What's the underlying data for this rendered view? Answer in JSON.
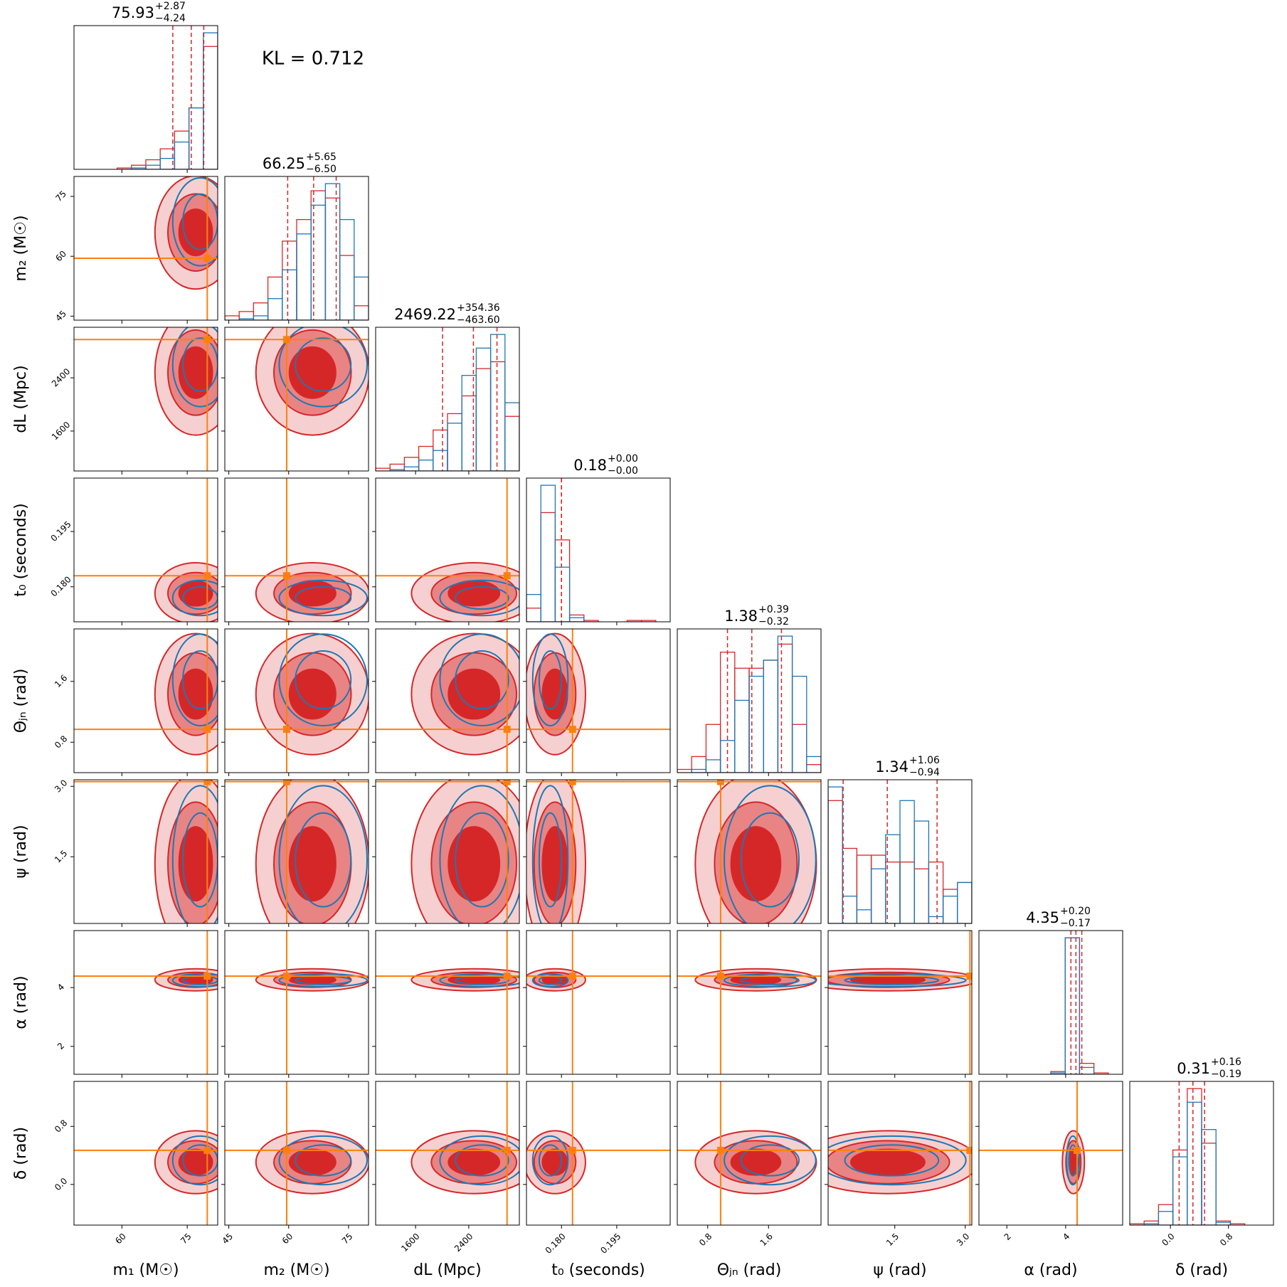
{
  "chart_data": {
    "type": "corner",
    "annotation": "KL = 0.712",
    "truth_color": "#ff7f0e",
    "parameters": [
      {
        "label": "m₁ (M☉)",
        "lim": [
          49,
          82
        ],
        "ticks": [
          60,
          75
        ],
        "truth": 79.6,
        "median": 75.93,
        "plus": {
          "value": 2.87,
          "label": "+2.87"
        },
        "minus": {
          "value": 4.24,
          "label": "−4.24"
        },
        "bins": [
          49,
          52.3,
          55.6,
          58.9,
          62.2,
          65.5,
          68.8,
          72.1,
          75.4,
          78.7,
          82
        ],
        "series": [
          {
            "color": "#d62728",
            "values": [
              0,
              0,
              0,
              1,
              3,
              7,
              15,
              28,
              45,
              90
            ]
          },
          {
            "color": "#1f77b4",
            "values": [
              0,
              0,
              0,
              0,
              1,
              3,
              8,
              20,
              45,
              100
            ]
          }
        ]
      },
      {
        "label": "m₂ (M☉)",
        "lim": [
          44,
          80
        ],
        "ticks": [
          45,
          60,
          75
        ],
        "truth": 59.5,
        "median": 66.25,
        "plus": {
          "value": 5.65,
          "label": "+5.65"
        },
        "minus": {
          "value": 6.5,
          "label": "−6.50"
        },
        "bins": [
          44,
          47.6,
          51.2,
          54.8,
          58.4,
          62,
          65.6,
          69.2,
          72.8,
          76.4,
          80
        ],
        "series": [
          {
            "color": "#d62728",
            "values": [
              3,
              6,
              12,
              30,
              55,
              70,
              90,
              85,
              45,
              10
            ]
          },
          {
            "color": "#1f77b4",
            "values": [
              0,
              1,
              3,
              15,
              35,
              60,
              80,
              95,
              70,
              30
            ]
          }
        ]
      },
      {
        "label": "dL (Mpc)",
        "lim": [
          1000,
          3160
        ],
        "ticks": [
          1600,
          2400
        ],
        "truth": 2975,
        "median": 2469.22,
        "plus": {
          "value": 354.36,
          "label": "+354.36"
        },
        "minus": {
          "value": 463.6,
          "label": "−463.60"
        },
        "bins": [
          1000,
          1216,
          1432,
          1648,
          1864,
          2080,
          2296,
          2512,
          2728,
          2944,
          3160
        ],
        "series": [
          {
            "color": "#d62728",
            "values": [
              2,
              5,
              10,
              18,
              30,
              42,
              55,
              75,
              80,
              40
            ]
          },
          {
            "color": "#1f77b4",
            "values": [
              0,
              1,
              3,
              8,
              15,
              35,
              70,
              90,
              100,
              50
            ]
          }
        ]
      },
      {
        "label": "t₀ (seconds)",
        "lim": [
          0.1705,
          0.2095
        ],
        "ticks": [
          {
            "value": 0.18,
            "label": "0.180"
          },
          {
            "value": 0.195,
            "label": "0.195"
          }
        ],
        "truth": 0.183,
        "median": 0.18,
        "plus": {
          "value": 0,
          "label": "+0.00"
        },
        "minus": {
          "value": 0,
          "label": "−0.00"
        },
        "bins": [
          0.1705,
          0.1744,
          0.1783,
          0.1822,
          0.1861,
          0.19,
          0.1939,
          0.1978,
          0.2017,
          0.2056,
          0.2095
        ],
        "series": [
          {
            "color": "#d62728",
            "values": [
              10,
              80,
              60,
              5,
              1,
              0,
              0,
              1,
              1,
              0
            ]
          },
          {
            "color": "#1f77b4",
            "values": [
              20,
              100,
              40,
              3,
              0,
              0,
              0,
              0,
              0,
              0
            ]
          }
        ]
      },
      {
        "label": "Θⱼₙ (rad)",
        "lim": [
          0.4,
          2.29
        ],
        "ticks": [
          0.8,
          1.6
        ],
        "truth": 0.97,
        "median": 1.38,
        "plus": {
          "value": 0.39,
          "label": "+0.39"
        },
        "minus": {
          "value": 0.32,
          "label": "−0.32"
        },
        "bins": [
          0.4,
          0.589,
          0.778,
          0.967,
          1.156,
          1.345,
          1.534,
          1.723,
          1.912,
          2.101,
          2.29
        ],
        "series": [
          {
            "color": "#d62728",
            "values": [
              2,
              10,
              30,
              75,
              65,
              65,
              70,
              80,
              30,
              5
            ]
          },
          {
            "color": "#1f77b4",
            "values": [
              0,
              2,
              8,
              20,
              45,
              60,
              70,
              85,
              60,
              10
            ]
          }
        ]
      },
      {
        "label": "ψ (rad)",
        "lim": [
          0.08,
          3.14
        ],
        "ticks": [
          1.5,
          {
            "value": 3,
            "label": "3.0"
          }
        ],
        "truth": 3.1,
        "median": 1.34,
        "plus": {
          "value": 1.06,
          "label": "+1.06"
        },
        "minus": {
          "value": 0.94,
          "label": "−0.94"
        },
        "bins": [
          0.08,
          0.386,
          0.692,
          0.998,
          1.304,
          1.61,
          1.916,
          2.222,
          2.528,
          2.834,
          3.14
        ],
        "series": [
          {
            "color": "#d62728",
            "values": [
              90,
              55,
              50,
              50,
              45,
              45,
              40,
              45,
              25,
              30
            ]
          },
          {
            "color": "#1f77b4",
            "values": [
              100,
              20,
              10,
              40,
              65,
              90,
              75,
              5,
              20,
              30
            ]
          }
        ]
      },
      {
        "label": "α (rad)",
        "lim": [
          1.05,
          5.94
        ],
        "ticks": [
          2,
          4
        ],
        "truth": 4.39,
        "median": 4.35,
        "plus": {
          "value": 0.2,
          "label": "+0.20"
        },
        "minus": {
          "value": 0.17,
          "label": "−0.17"
        },
        "bins": [
          1.05,
          1.539,
          2.028,
          2.517,
          3.006,
          3.495,
          3.984,
          4.473,
          4.962,
          5.451,
          5.94
        ],
        "series": [
          {
            "color": "#d62728",
            "values": [
              0,
              0,
              0,
              0,
              0,
              2,
              100,
              8,
              1,
              0
            ]
          },
          {
            "color": "#1f77b4",
            "values": [
              0,
              0,
              0,
              0,
              0,
              1,
              100,
              5,
              0,
              0
            ]
          }
        ]
      },
      {
        "label": "δ (rad)",
        "lim": [
          -0.56,
          1.42
        ],
        "ticks": [
          {
            "value": 0,
            "label": "0.0"
          },
          0.8
        ],
        "truth": 0.47,
        "median": 0.31,
        "plus": {
          "value": 0.16,
          "label": "+0.16"
        },
        "minus": {
          "value": 0.19,
          "label": "−0.19"
        },
        "bins": [
          -0.56,
          -0.362,
          -0.164,
          0.034,
          0.232,
          0.43,
          0.628,
          0.826,
          1.024,
          1.222,
          1.42
        ],
        "series": [
          {
            "color": "#d62728",
            "values": [
              1,
              3,
              15,
              55,
              100,
              60,
              3,
              1,
              0,
              0
            ]
          },
          {
            "color": "#1f77b4",
            "values": [
              0,
              1,
              10,
              50,
              90,
              70,
              2,
              0,
              0,
              0
            ]
          }
        ]
      }
    ]
  }
}
